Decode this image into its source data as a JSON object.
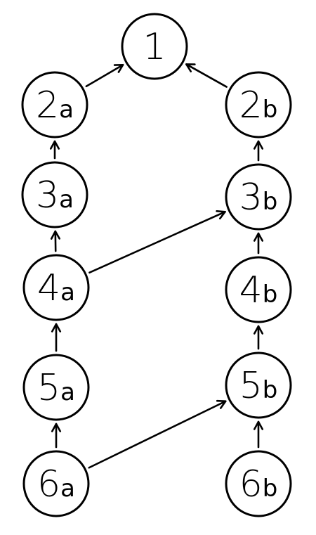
{
  "diagram": {
    "title": "",
    "nodes": [
      {
        "id": "1",
        "number": "1",
        "suffix": ""
      },
      {
        "id": "2a",
        "number": "2",
        "suffix": "a"
      },
      {
        "id": "2b",
        "number": "2",
        "suffix": "b"
      },
      {
        "id": "3a",
        "number": "3",
        "suffix": "a"
      },
      {
        "id": "3b",
        "number": "3",
        "suffix": "b"
      },
      {
        "id": "4a",
        "number": "4",
        "suffix": "a"
      },
      {
        "id": "4b",
        "number": "4",
        "suffix": "b"
      },
      {
        "id": "5a",
        "number": "5",
        "suffix": "a"
      },
      {
        "id": "5b",
        "number": "5",
        "suffix": "b"
      },
      {
        "id": "6a",
        "number": "6",
        "suffix": "a"
      },
      {
        "id": "6b",
        "number": "6",
        "suffix": "b"
      }
    ],
    "edges": [
      {
        "from": "2a",
        "to": "1"
      },
      {
        "from": "2b",
        "to": "1"
      },
      {
        "from": "3a",
        "to": "2a"
      },
      {
        "from": "3b",
        "to": "2b"
      },
      {
        "from": "4a",
        "to": "3a"
      },
      {
        "from": "4a",
        "to": "3b"
      },
      {
        "from": "4b",
        "to": "3b"
      },
      {
        "from": "5a",
        "to": "4a"
      },
      {
        "from": "5b",
        "to": "4b"
      },
      {
        "from": "6a",
        "to": "5a"
      },
      {
        "from": "6a",
        "to": "5b"
      },
      {
        "from": "6b",
        "to": "5b"
      }
    ],
    "colors": {
      "stroke": "#000000",
      "background": "#ffffff"
    }
  }
}
